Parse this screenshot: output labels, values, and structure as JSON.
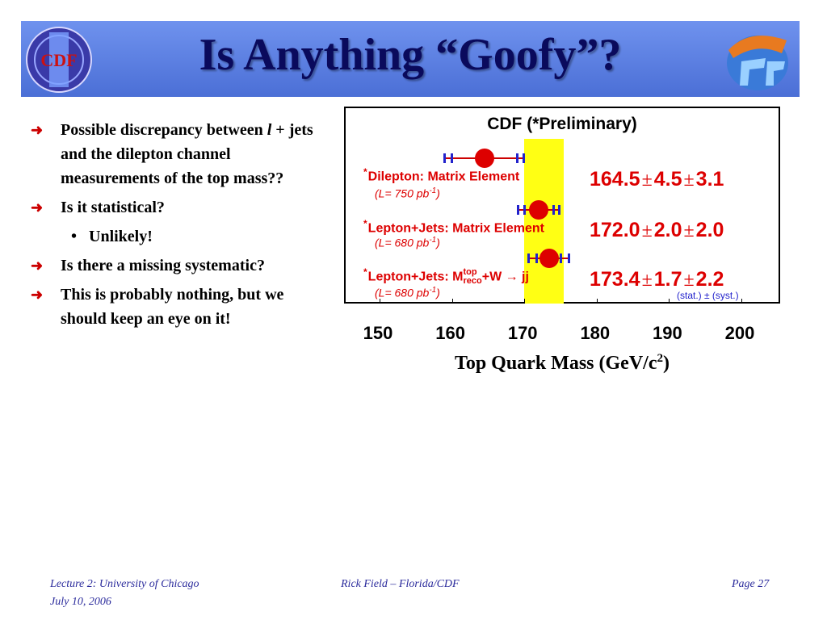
{
  "slide": {
    "title": "Is Anything “Goofy”?",
    "logo_left_text": "CDF",
    "colors": {
      "header": "#5a7fe0",
      "title": "#0a0a5c",
      "accent": "#dd0000",
      "band": "#ffff14",
      "footer": "#2b2b9c"
    }
  },
  "bullets": [
    {
      "pre": "Possible discrepancy between ",
      "italic": "l",
      "post": " + jets and the dilepton channel measurements of the top mass??"
    },
    {
      "text": "Is it statistical?"
    },
    {
      "text": "Unlikely!",
      "sub": true
    },
    {
      "text": "Is there a missing systematic?"
    },
    {
      "text": "This is probably nothing, but we should keep an eye on it!"
    }
  ],
  "chart_data": {
    "type": "scatter",
    "title": "CDF (*Preliminary)",
    "xlabel_main": "Top Quark Mass (GeV/c",
    "xlabel_sup": "2",
    "xlabel_end": ")",
    "xlim": [
      150,
      200
    ],
    "xticks": [
      "150",
      "160",
      "170",
      "180",
      "190",
      "200"
    ],
    "band": [
      170,
      175.5
    ],
    "measurements": [
      {
        "star": "*",
        "label": "Dilepton: Matrix Element",
        "lumi_pre": "(L= 750 pb",
        "lumi_sup": "-1",
        "lumi_post": ")",
        "value": 164.5,
        "stat": 4.5,
        "syst": 3.1,
        "v": "164.5",
        "s1": "4.5",
        "s2": "3.1"
      },
      {
        "star": "*",
        "label": "Lepton+Jets: Matrix Element",
        "lumi_pre": "(L= 680 pb",
        "lumi_sup": "-1",
        "lumi_post": ")",
        "value": 172.0,
        "stat": 2.0,
        "syst": 2.0,
        "v": "172.0",
        "s1": "2.0",
        "s2": "2.0"
      },
      {
        "star": "*",
        "label_pre": "Lepton+Jets: M",
        "label_sup": "top",
        "label_sub": "reco",
        "label_post": "+W → jj",
        "lumi_pre": "(L= 680 pb",
        "lumi_sup": "-1",
        "lumi_post": ")",
        "value": 173.4,
        "stat": 1.7,
        "syst": 2.2,
        "v": "173.4",
        "s1": "1.7",
        "s2": "2.2"
      }
    ],
    "pm": "±",
    "truncated_note": "(stat.) ± (syst.)"
  },
  "footer": {
    "left1": "Lecture 2: University of Chicago",
    "left2": "July 10, 2006",
    "center": "Rick Field – Florida/CDF",
    "right": "Page 27"
  }
}
